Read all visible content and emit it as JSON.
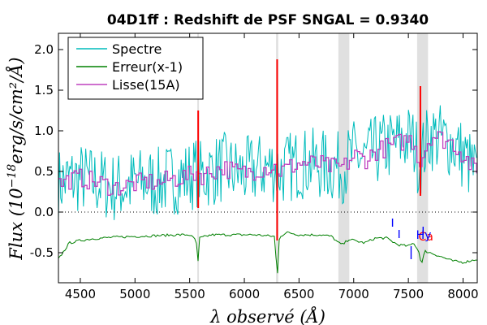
{
  "chart_data": {
    "type": "line",
    "title": "04D1ff : Redshift de PSF SNGAL = 0.9340",
    "xlabel": "λ observé (Å)",
    "ylabel": "Flux (10^-18 erg/s/cm²/Å)",
    "ylabel_parts": {
      "main": "Flux (10",
      "exp": "−18",
      "rest": "erg/s/cm²/Å)"
    },
    "xlim": [
      4300,
      8130
    ],
    "ylim": [
      -0.87,
      2.2
    ],
    "x_ticks": [
      4500,
      5000,
      5500,
      6000,
      6500,
      7000,
      7500,
      8000
    ],
    "y_ticks": [
      {
        "value": -0.5,
        "label": "-0.5"
      },
      {
        "value": 0.0,
        "label": "0.0"
      },
      {
        "value": 0.5,
        "label": "0.5"
      },
      {
        "value": 1.0,
        "label": "1.0"
      },
      {
        "value": 1.5,
        "label": "1.5"
      },
      {
        "value": 2.0,
        "label": "2.0"
      }
    ],
    "legend": {
      "placement": "top-left",
      "entries": [
        {
          "name": "Spectre",
          "color": "#00bcbc"
        },
        {
          "name": "Erreur(x-1)",
          "color": "#008000"
        },
        {
          "name": "Lisse(15A)",
          "color": "#bf40bf"
        }
      ]
    },
    "zero_line": {
      "y": 0,
      "style": "dotted"
    },
    "shaded_bands": [
      {
        "x0": 5570,
        "x1": 5585
      },
      {
        "x0": 6290,
        "x1": 6310
      },
      {
        "x0": 6860,
        "x1": 6960
      },
      {
        "x0": 7580,
        "x1": 7680
      }
    ],
    "series": [
      {
        "name": "Spectre",
        "color": "#00bcbc",
        "x": [
          4300,
          4400,
          4500,
          4600,
          4700,
          4800,
          4900,
          5000,
          5100,
          5200,
          5300,
          5400,
          5500,
          5560,
          5600,
          5700,
          5800,
          5900,
          6000,
          6100,
          6200,
          6280,
          6320,
          6400,
          6500,
          6600,
          6700,
          6800,
          6900,
          7000,
          7100,
          7200,
          7300,
          7400,
          7500,
          7550,
          7600,
          7650,
          7700,
          7800,
          7900,
          8000,
          8130
        ],
        "y": [
          0.35,
          0.4,
          0.42,
          0.38,
          0.35,
          0.3,
          0.32,
          0.35,
          0.38,
          0.35,
          0.4,
          0.42,
          0.45,
          0.5,
          0.45,
          0.5,
          0.55,
          0.5,
          0.48,
          0.52,
          0.55,
          0.55,
          0.5,
          0.55,
          0.6,
          0.6,
          0.58,
          0.55,
          0.55,
          0.7,
          0.65,
          0.75,
          0.8,
          0.85,
          0.9,
          0.85,
          0.6,
          0.8,
          0.95,
          0.9,
          0.85,
          0.7,
          0.45
        ],
        "noise": 0.45
      },
      {
        "name": "Erreur(x-1)",
        "color": "#008000",
        "x": [
          4300,
          4400,
          4500,
          4600,
          4800,
          5000,
          5200,
          5400,
          5500,
          5560,
          5575,
          5590,
          5700,
          5900,
          6100,
          6280,
          6300,
          6320,
          6400,
          6500,
          6700,
          6800,
          6860,
          6900,
          6960,
          7000,
          7100,
          7200,
          7300,
          7400,
          7500,
          7550,
          7600,
          7620,
          7650,
          7700,
          7800,
          7900,
          8000,
          8130
        ],
        "y": [
          -0.58,
          -0.38,
          -0.35,
          -0.33,
          -0.31,
          -0.3,
          -0.29,
          -0.28,
          -0.28,
          -0.35,
          -0.65,
          -0.32,
          -0.28,
          -0.28,
          -0.28,
          -0.3,
          -0.87,
          -0.3,
          -0.25,
          -0.28,
          -0.28,
          -0.3,
          -0.38,
          -0.4,
          -0.33,
          -0.35,
          -0.38,
          -0.32,
          -0.32,
          -0.4,
          -0.42,
          -0.38,
          -0.5,
          -0.65,
          -0.48,
          -0.5,
          -0.55,
          -0.6,
          -0.62,
          -0.58
        ]
      },
      {
        "name": "Lisse(15A)",
        "color": "#bf40bf",
        "x": [
          4300,
          4400,
          4500,
          4600,
          4700,
          4800,
          4900,
          5000,
          5100,
          5200,
          5300,
          5400,
          5500,
          5560,
          5600,
          5700,
          5800,
          5900,
          6000,
          6100,
          6200,
          6280,
          6320,
          6400,
          6500,
          6600,
          6700,
          6800,
          6900,
          7000,
          7100,
          7200,
          7300,
          7400,
          7500,
          7550,
          7600,
          7650,
          7700,
          7800,
          7900,
          8000,
          8130
        ],
        "y": [
          0.35,
          0.4,
          0.42,
          0.38,
          0.35,
          0.3,
          0.32,
          0.35,
          0.38,
          0.35,
          0.4,
          0.42,
          0.45,
          0.5,
          0.45,
          0.5,
          0.55,
          0.5,
          0.48,
          0.52,
          0.55,
          0.55,
          0.5,
          0.55,
          0.6,
          0.6,
          0.58,
          0.55,
          0.55,
          0.7,
          0.65,
          0.75,
          0.8,
          0.85,
          0.9,
          0.85,
          0.6,
          0.8,
          0.95,
          0.9,
          0.85,
          0.7,
          0.45
        ],
        "noise": 0.12
      }
    ],
    "red_lines": [
      {
        "x": 5578,
        "y0": 0.05,
        "y1": 1.25
      },
      {
        "x": 6300,
        "y0": -0.35,
        "y1": 1.88
      },
      {
        "x": 7610,
        "y0": 0.2,
        "y1": 1.55
      }
    ],
    "blue_markers": [
      {
        "x": 7355,
        "y0": -0.08,
        "y1": -0.18
      },
      {
        "x": 7415,
        "y0": -0.22,
        "y1": -0.32
      },
      {
        "x": 7525,
        "y0": -0.42,
        "y1": -0.58
      },
      {
        "x": 7635,
        "y0": -0.18,
        "y1": -0.28
      }
    ],
    "annotations": [
      {
        "text": "Ca",
        "x": 7660,
        "y": -0.35,
        "color": "#ff0000"
      },
      {
        "text": "Hy",
        "x": 7640,
        "y": -0.33,
        "color": "#0000ff"
      }
    ]
  }
}
